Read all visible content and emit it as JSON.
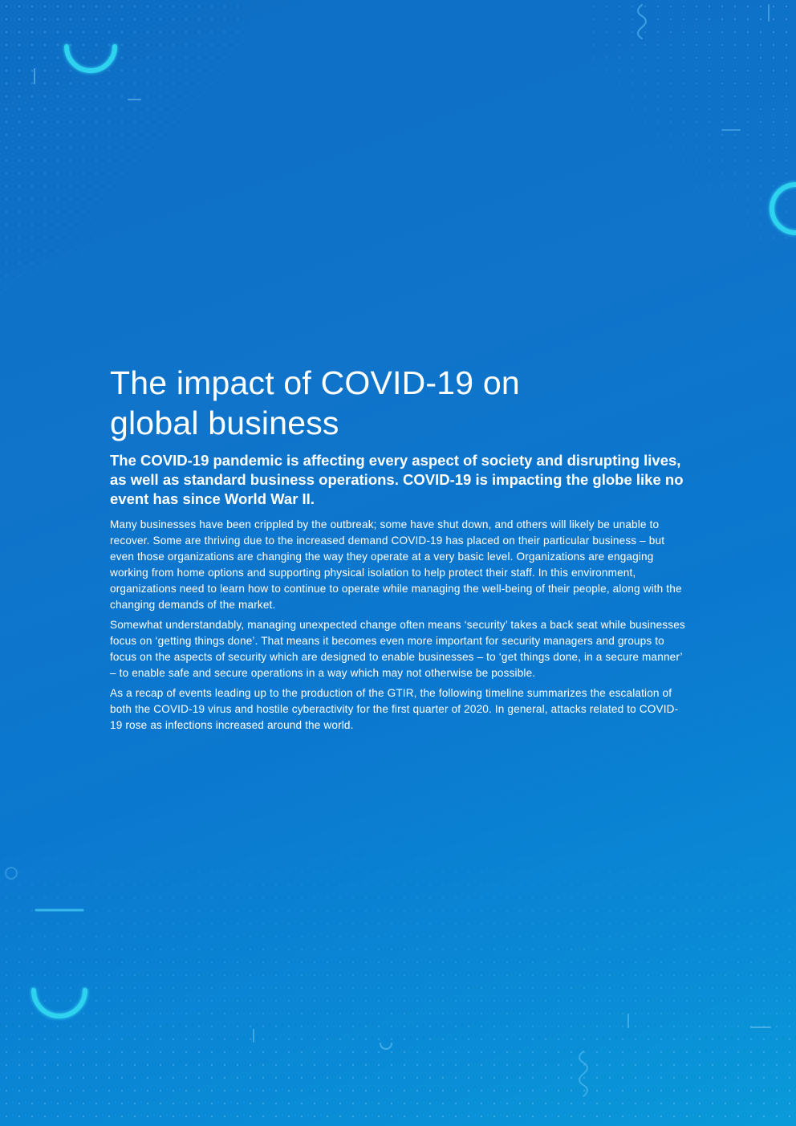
{
  "title_line1": "The impact of COVID-19 on",
  "title_line2": "global business",
  "lead": "The COVID-19 pandemic is affecting every aspect of society and disrupting lives, as well as standard business operations. COVID-19 is impacting the globe like no event has since World War II.",
  "paragraphs": [
    "Many businesses have been crippled by the outbreak; some have shut down, and others will likely be unable to recover. Some are thriving due to the increased demand COVID-19 has placed on their particular business – but even those organizations are changing the way they operate at a very basic level. Organizations are engaging working from home options and supporting physical isolation to help protect their staff. In this environment, organizations need to learn how to continue to operate while managing the well-being of their people, along with the changing demands of the market.",
    "Somewhat understandably, managing unexpected change often means ‘security’ takes a back seat while businesses focus on ‘getting things done’. That means it becomes even more important for security managers and groups to focus on the aspects of security which are designed to enable businesses – to ‘get things done, in a secure manner’ – to enable safe and secure operations in a way which may not otherwise be possible.",
    "As a recap of events leading up to the production of the GTIR, the following timeline summarizes the escalation of both the COVID-19 virus and hostile cyberactivity for the first quarter of 2020. In general, attacks related to COVID-19 rose as infections increased around the world."
  ],
  "colors": {
    "background_start": "#0d6ec4",
    "background_end": "#0a9ad9",
    "accent": "#2fd3f0",
    "text": "#ffffff"
  }
}
